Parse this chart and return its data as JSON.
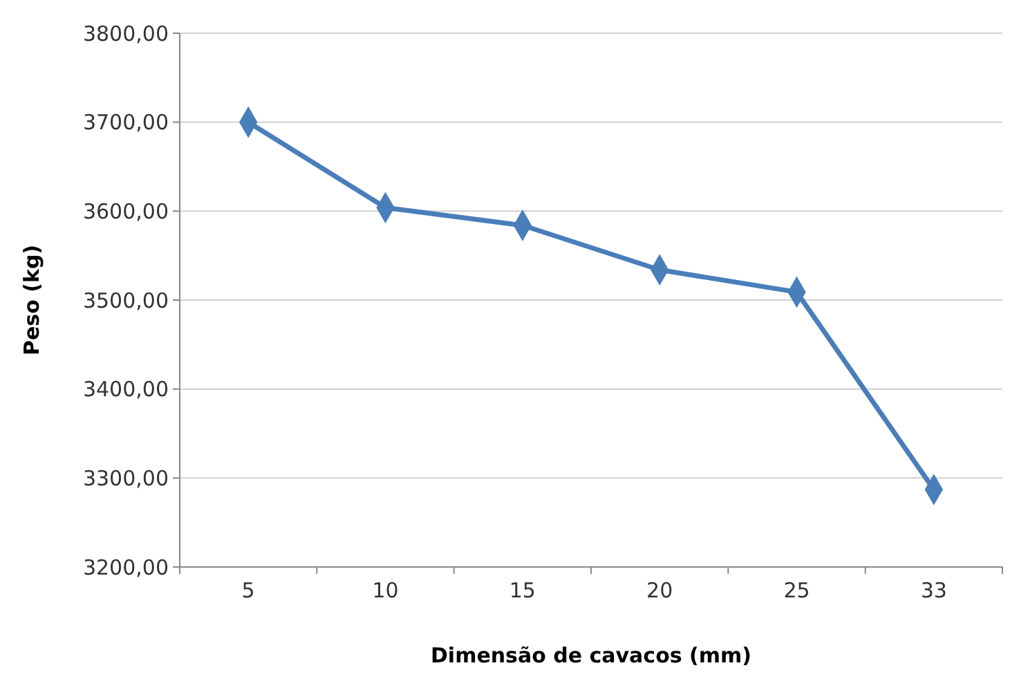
{
  "chart_data": {
    "type": "line",
    "xlabel": "Dimensão de cavacos (mm)",
    "ylabel": "Peso (kg)",
    "categories": [
      "5",
      "10",
      "15",
      "20",
      "25",
      "33"
    ],
    "series": [
      {
        "color": "#4a7ebb",
        "values": [
          3700,
          3604,
          3584,
          3534,
          3509,
          3287
        ]
      }
    ],
    "ylim": [
      3200,
      3800
    ],
    "yticks": [
      {
        "value": 3200,
        "label": "3200,00"
      },
      {
        "value": 3300,
        "label": "3300,00"
      },
      {
        "value": 3400,
        "label": "3400,00"
      },
      {
        "value": 3500,
        "label": "3500,00"
      },
      {
        "value": 3600,
        "label": "3600,00"
      },
      {
        "value": 3700,
        "label": "3700,00"
      },
      {
        "value": 3800,
        "label": "3800,00"
      }
    ],
    "grid": "y",
    "marker": "diamond",
    "line_style": "solid"
  }
}
